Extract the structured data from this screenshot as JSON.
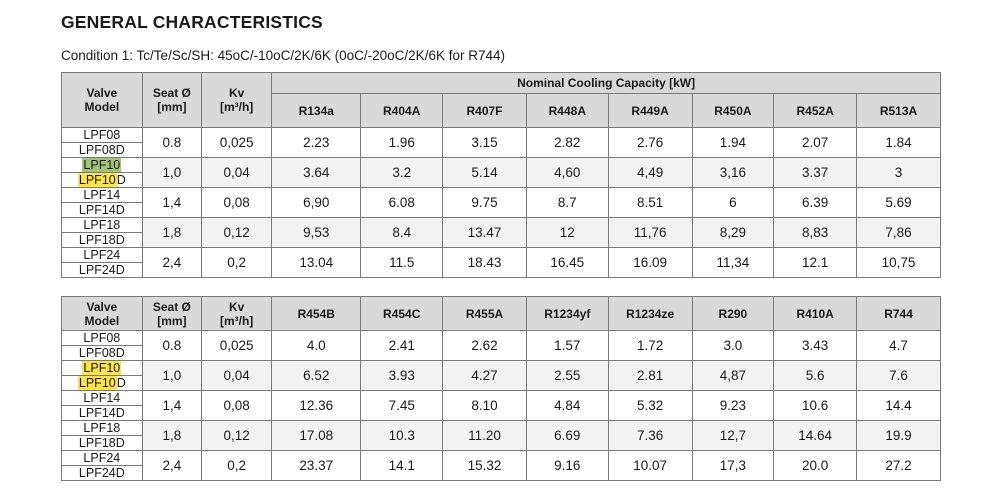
{
  "title": "GENERAL CHARACTERISTICS",
  "condition": "Condition 1: Tc/Te/Sc/SH: 45oC/-10oC/2K/6K (0oC/-20oC/2K/6K for R744)",
  "headers": {
    "valve_model": [
      "Valve",
      "Model"
    ],
    "seat": [
      "Seat Ø",
      "[mm]"
    ],
    "kv": [
      "Kv",
      "[m³/h]"
    ],
    "group": "Nominal Cooling Capacity [kW]"
  },
  "models": [
    {
      "top": "LPF08",
      "bottom": "LPF08D",
      "seat": "0.8",
      "kv": "0,025"
    },
    {
      "top": "LPF10",
      "bottom": "LPF10D",
      "bottom_hl": "LPF10",
      "bottom_rest": "D",
      "seat": "1,0",
      "kv": "0,04"
    },
    {
      "top": "LPF14",
      "bottom": "LPF14D",
      "seat": "1,4",
      "kv": "0,08"
    },
    {
      "top": "LPF18",
      "bottom": "LPF18D",
      "seat": "1,8",
      "kv": "0,12"
    },
    {
      "top": "LPF24",
      "bottom": "LPF24D",
      "seat": "2,4",
      "kv": "0,2"
    }
  ],
  "table1": {
    "refrigerants": [
      "R134a",
      "R404A",
      "R407F",
      "R448A",
      "R449A",
      "R450A",
      "R452A",
      "R513A"
    ],
    "rows": [
      [
        "2.23",
        "1.96",
        "3.15",
        "2.82",
        "2.76",
        "1.94",
        "2.07",
        "1.84"
      ],
      [
        "3.64",
        "3.2",
        "5.14",
        "4,60",
        "4,49",
        "3,16",
        "3.37",
        "3"
      ],
      [
        "6,90",
        "6.08",
        "9.75",
        "8.7",
        "8.51",
        "6",
        "6.39",
        "5.69"
      ],
      [
        "9,53",
        "8.4",
        "13.47",
        "12",
        "11,76",
        "8,29",
        "8,83",
        "7,86"
      ],
      [
        "13.04",
        "11.5",
        "18.43",
        "16.45",
        "16.09",
        "11,34",
        "12.1",
        "10,75"
      ]
    ]
  },
  "table2": {
    "refrigerants": [
      "R454B",
      "R454C",
      "R455A",
      "R1234yf",
      "R1234ze",
      "R290",
      "R410A",
      "R744"
    ],
    "rows": [
      [
        "4.0",
        "2.41",
        "2.62",
        "1.57",
        "1.72",
        "3.0",
        "3.43",
        "4.7"
      ],
      [
        "6.52",
        "3.93",
        "4.27",
        "2.55",
        "2.81",
        "4,87",
        "5.6",
        "7.6"
      ],
      [
        "12.36",
        "7.45",
        "8.10",
        "4.84",
        "5.32",
        "9.23",
        "10.6",
        "14.4"
      ],
      [
        "17.08",
        "10.3",
        "11.20",
        "6.69",
        "7.36",
        "12,7",
        "14.64",
        "19.9"
      ],
      [
        "23.37",
        "14.1",
        "15.32",
        "9.16",
        "10.07",
        "17,3",
        "20.0",
        "27.2"
      ]
    ]
  },
  "colors": {
    "header_bg": "#d9d9d9",
    "highlight_green": "#a4c37a",
    "highlight_yellow": "#ffe449",
    "row_shade": "#f2f2f2"
  }
}
